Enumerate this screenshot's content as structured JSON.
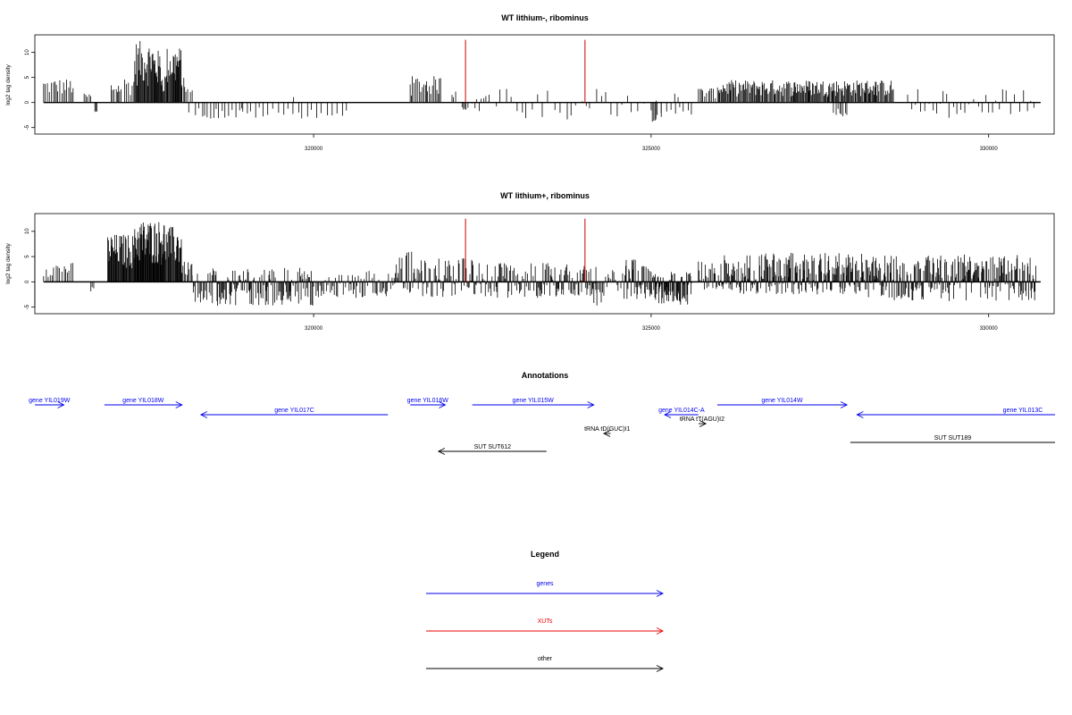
{
  "chart_data": [
    {
      "type": "bar",
      "title": "WT lithium-, ribominus",
      "ylabel": "log2 tag density",
      "xlim": [
        315870,
        330970
      ],
      "ylim": [
        -6.3,
        13.5
      ],
      "yticks": [
        -5,
        0,
        5,
        10
      ],
      "xticks": [
        320000,
        325000,
        330000
      ],
      "track_start": 316000,
      "track_end": 330770,
      "grid": false,
      "series": [
        {
          "style": "signal-bars",
          "segments": [
            {
              "start": 316000,
              "end": 316450,
              "min": 0,
              "max": 4.8,
              "spacing": 25
            },
            {
              "start": 316600,
              "end": 316700,
              "min": 0,
              "max": 1.8,
              "spacing": 25
            },
            {
              "start": 316760,
              "end": 316800,
              "min": -2.3,
              "max": 0,
              "spacing": 20
            },
            {
              "start": 317000,
              "end": 317150,
              "min": 0,
              "max": 4.2,
              "spacing": 25
            },
            {
              "start": 317200,
              "end": 317350,
              "min": 0,
              "max": 5.2,
              "spacing": 25
            },
            {
              "start": 317350,
              "end": 317620,
              "min": 0,
              "max": 12.3,
              "spacing": 10
            },
            {
              "start": 317620,
              "end": 317750,
              "min": 0,
              "max": 10.5,
              "spacing": 10
            },
            {
              "start": 317750,
              "end": 317820,
              "min": 0,
              "max": 6.0,
              "spacing": 15
            },
            {
              "start": 317820,
              "end": 318050,
              "min": 0,
              "max": 11.2,
              "spacing": 10
            },
            {
              "start": 318050,
              "end": 318150,
              "min": 0,
              "max": 5.0,
              "spacing": 20
            },
            {
              "start": 318150,
              "end": 318220,
              "min": -2.0,
              "max": 3.0,
              "spacing": 20
            },
            {
              "start": 318250,
              "end": 318950,
              "min": -3.3,
              "max": 0,
              "spacing": 45
            },
            {
              "start": 318950,
              "end": 320500,
              "min": -3.2,
              "max": 0,
              "spacing": 70
            },
            {
              "start": 319700,
              "end": 319750,
              "min": 0,
              "max": 2.5,
              "spacing": 40
            },
            {
              "start": 321430,
              "end": 321900,
              "min": 0,
              "max": 5.3,
              "spacing": 20
            },
            {
              "start": 322050,
              "end": 322120,
              "min": 0,
              "max": 3.0,
              "spacing": 30
            },
            {
              "start": 322200,
              "end": 322300,
              "min": -2.8,
              "max": 0,
              "spacing": 25
            },
            {
              "start": 322350,
              "end": 322600,
              "min": -2.5,
              "max": 2.8,
              "spacing": 35
            },
            {
              "start": 322600,
              "end": 325400,
              "min": -3.5,
              "max": 2.8,
              "spacing": 80
            },
            {
              "start": 325000,
              "end": 325100,
              "min": -3.9,
              "max": 0,
              "spacing": 20
            },
            {
              "start": 325150,
              "end": 325600,
              "min": -3.3,
              "max": 0,
              "spacing": 60
            },
            {
              "start": 325700,
              "end": 326000,
              "min": 0,
              "max": 3.0,
              "spacing": 25
            },
            {
              "start": 326000,
              "end": 328600,
              "min": 0,
              "max": 4.5,
              "spacing": 14
            },
            {
              "start": 327700,
              "end": 327900,
              "min": -2.8,
              "max": 0,
              "spacing": 30
            },
            {
              "start": 328800,
              "end": 330000,
              "min": -3.3,
              "max": 2.7,
              "spacing": 55
            },
            {
              "start": 330000,
              "end": 330700,
              "min": -2.5,
              "max": 2.8,
              "spacing": 60
            }
          ]
        },
        {
          "style": "markers",
          "color": "#cc0000",
          "positions": [
            322250,
            324020
          ],
          "value": 12.5
        }
      ]
    },
    {
      "type": "bar",
      "title": "WT lithium+, ribominus",
      "ylabel": "log2 tag density",
      "xlim": [
        315870,
        330970
      ],
      "ylim": [
        -6.3,
        13.5
      ],
      "yticks": [
        -5,
        0,
        5,
        10
      ],
      "xticks": [
        320000,
        325000,
        330000
      ],
      "track_start": 316000,
      "track_end": 330770,
      "grid": false,
      "series": [
        {
          "style": "signal-bars",
          "segments": [
            {
              "start": 316000,
              "end": 316450,
              "min": 0,
              "max": 3.8,
              "spacing": 30
            },
            {
              "start": 316700,
              "end": 316760,
              "min": -2.0,
              "max": 0,
              "spacing": 20
            },
            {
              "start": 316950,
              "end": 317350,
              "min": 0,
              "max": 9.5,
              "spacing": 10
            },
            {
              "start": 317350,
              "end": 317800,
              "min": 0,
              "max": 12.3,
              "spacing": 8
            },
            {
              "start": 317800,
              "end": 318050,
              "min": 0,
              "max": 11.0,
              "spacing": 10
            },
            {
              "start": 318050,
              "end": 318200,
              "min": 0,
              "max": 4.0,
              "spacing": 20
            },
            {
              "start": 318200,
              "end": 318500,
              "min": -4.5,
              "max": 2.0,
              "spacing": 15
            },
            {
              "start": 318500,
              "end": 320000,
              "min": -4.8,
              "max": 2.8,
              "spacing": 12
            },
            {
              "start": 320000,
              "end": 321200,
              "min": -3.2,
              "max": 2.5,
              "spacing": 18
            },
            {
              "start": 321200,
              "end": 321600,
              "min": -2.5,
              "max": 6.0,
              "spacing": 14
            },
            {
              "start": 321600,
              "end": 322400,
              "min": -3.0,
              "max": 4.8,
              "spacing": 14
            },
            {
              "start": 322400,
              "end": 323600,
              "min": -3.2,
              "max": 3.8,
              "spacing": 14
            },
            {
              "start": 323600,
              "end": 324200,
              "min": -2.8,
              "max": 3.5,
              "spacing": 14
            },
            {
              "start": 324100,
              "end": 324300,
              "min": -4.8,
              "max": 0,
              "spacing": 20
            },
            {
              "start": 324300,
              "end": 324600,
              "min": -2.0,
              "max": 2.5,
              "spacing": 20
            },
            {
              "start": 324600,
              "end": 325000,
              "min": -3.5,
              "max": 4.5,
              "spacing": 10
            },
            {
              "start": 325000,
              "end": 325600,
              "min": -4.8,
              "max": 2.0,
              "spacing": 8
            },
            {
              "start": 325700,
              "end": 326000,
              "min": -1.5,
              "max": 4.5,
              "spacing": 15
            },
            {
              "start": 326000,
              "end": 328200,
              "min": -2.5,
              "max": 5.8,
              "spacing": 10
            },
            {
              "start": 328200,
              "end": 329500,
              "min": -3.8,
              "max": 5.2,
              "spacing": 10
            },
            {
              "start": 329500,
              "end": 330700,
              "min": -3.8,
              "max": 5.5,
              "spacing": 10
            }
          ]
        },
        {
          "style": "markers",
          "color": "#cc0000",
          "positions": [
            322250,
            324020
          ],
          "value": 12.5
        }
      ]
    }
  ],
  "annotations": {
    "title": "Annotations",
    "xlim": [
      315870,
      330970
    ],
    "features": [
      {
        "label": "gene YIL019W",
        "start": 315300,
        "end": 316300,
        "dir": "+",
        "lane": 0,
        "color": "#0000ee"
      },
      {
        "label": "gene YIL018W",
        "start": 316900,
        "end": 318050,
        "dir": "+",
        "lane": 0,
        "color": "#0000ee"
      },
      {
        "label": "gene YIL017C",
        "start": 318330,
        "end": 321100,
        "dir": "-",
        "lane": 1,
        "color": "#0000ee"
      },
      {
        "label": "gene YIL016W",
        "start": 321430,
        "end": 321950,
        "dir": "+",
        "lane": 0,
        "color": "#0000ee"
      },
      {
        "label": "gene YIL015W",
        "start": 322350,
        "end": 324150,
        "dir": "+",
        "lane": 0,
        "color": "#0000ee"
      },
      {
        "label": "gene YIL014C-A",
        "start": 325200,
        "end": 325700,
        "dir": "-",
        "lane": 1,
        "color": "#0000ee"
      },
      {
        "label": "gene YIL014W",
        "start": 325980,
        "end": 327900,
        "dir": "+",
        "lane": 0,
        "color": "#0000ee"
      },
      {
        "label": "gene YIL013C",
        "start": 328050,
        "end": 331100,
        "dir": "-",
        "lane": 1,
        "color": "#0000ee"
      },
      {
        "label": "tRNA tD(GUC)I1",
        "start": 324300,
        "end": 324400,
        "dir": "-",
        "lane": 3,
        "color": "#000000"
      },
      {
        "label": "tRNA tT(AGU)I2",
        "start": 325700,
        "end": 325810,
        "dir": "+",
        "lane": 2,
        "color": "#000000"
      },
      {
        "label": "SUT SUT189",
        "start": 327950,
        "end": 331100,
        "dir": "none",
        "lane": 4,
        "color": "#000000"
      },
      {
        "label": "SUT SUT612",
        "start": 321850,
        "end": 323450,
        "dir": "-",
        "lane": 5,
        "color": "#000000"
      }
    ]
  },
  "legend": {
    "title": "Legend",
    "entries": [
      {
        "label": "genes",
        "color": "#0000ee"
      },
      {
        "label": "XUTs",
        "color": "#ee0000"
      },
      {
        "label": "other",
        "color": "#000000"
      }
    ]
  }
}
